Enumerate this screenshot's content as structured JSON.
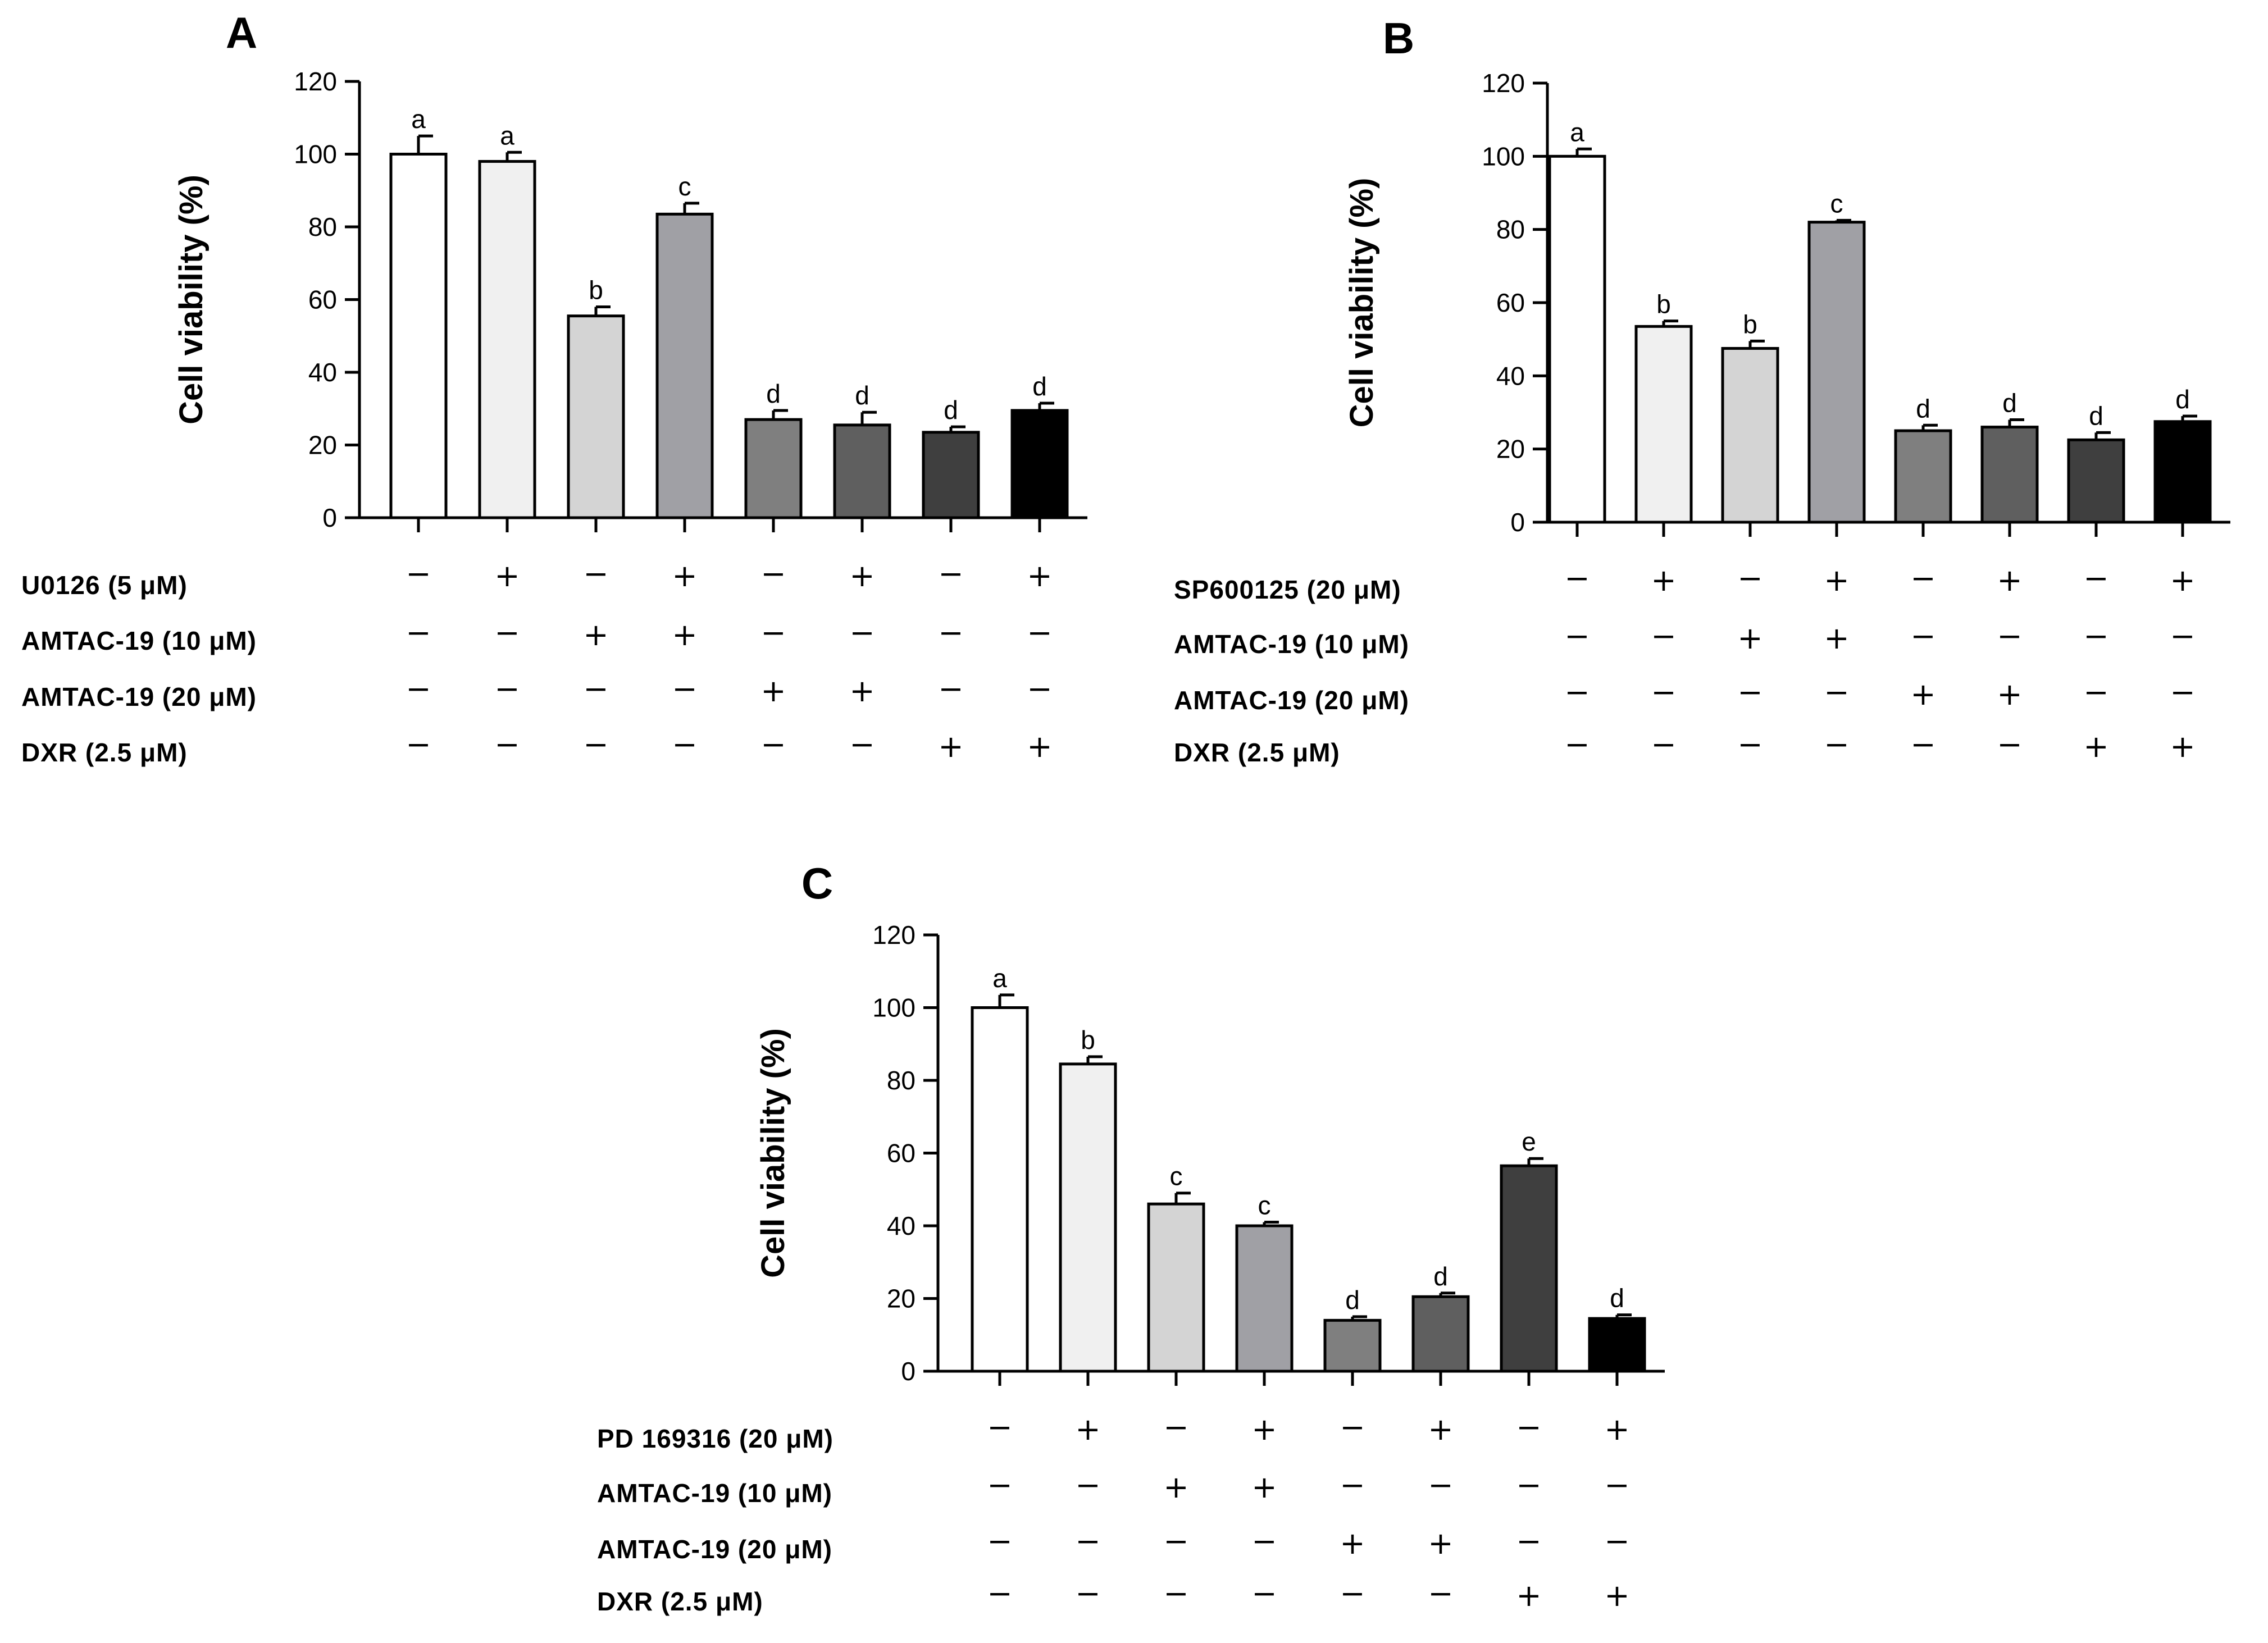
{
  "colors": [
    "#ffffff",
    "#f0f0f0",
    "#d4d4d4",
    "#a0a0a5",
    "#7f7f7f",
    "#5f5f5f",
    "#3f3f3f",
    "#000000"
  ],
  "chart_data": [
    {
      "type": "bar",
      "panel": "A",
      "ylabel": "Cell viability (%)",
      "ylim": [
        0,
        120
      ],
      "yticks": [
        "0",
        "20",
        "40",
        "60",
        "80",
        "100",
        "120"
      ],
      "values": [
        100,
        98,
        55.5,
        83.5,
        27,
        25.5,
        23.5,
        29.5
      ],
      "errors": [
        5,
        2.5,
        2.5,
        3,
        2.5,
        3.5,
        1.5,
        2
      ],
      "letters": [
        "a",
        "a",
        "b",
        "c",
        "d",
        "d",
        "d",
        "d"
      ],
      "treatments": [
        {
          "label": "U0126 (5 μM)",
          "signs": [
            "−",
            "+",
            "−",
            "+",
            "−",
            "+",
            "−",
            "+"
          ]
        },
        {
          "label": "AMTAC-19 (10 μM)",
          "signs": [
            "−",
            "−",
            "+",
            "+",
            "−",
            "−",
            "−",
            "−"
          ]
        },
        {
          "label": "AMTAC-19 (20 μM)",
          "signs": [
            "−",
            "−",
            "−",
            "−",
            "+",
            "+",
            "−",
            "−"
          ]
        },
        {
          "label": "DXR (2.5 μM)",
          "signs": [
            "−",
            "−",
            "−",
            "−",
            "−",
            "−",
            "+",
            "+"
          ]
        }
      ]
    },
    {
      "type": "bar",
      "panel": "B",
      "ylabel": "Cell viability (%)",
      "ylim": [
        0,
        120
      ],
      "yticks": [
        "0",
        "20",
        "40",
        "60",
        "80",
        "100",
        "120"
      ],
      "values": [
        100,
        53.5,
        47.5,
        82,
        25,
        26,
        22.5,
        27.5
      ],
      "errors": [
        2,
        1.5,
        2,
        0.5,
        1.5,
        2,
        2,
        1.5
      ],
      "letters": [
        "a",
        "b",
        "b",
        "c",
        "d",
        "d",
        "d",
        "d"
      ],
      "treatments": [
        {
          "label": "SP600125 (20 μM)",
          "signs": [
            "−",
            "+",
            "−",
            "+",
            "−",
            "+",
            "−",
            "+"
          ]
        },
        {
          "label": "AMTAC-19 (10 μM)",
          "signs": [
            "−",
            "−",
            "+",
            "+",
            "−",
            "−",
            "−",
            "−"
          ]
        },
        {
          "label": "AMTAC-19 (20 μM)",
          "signs": [
            "−",
            "−",
            "−",
            "−",
            "+",
            "+",
            "−",
            "−"
          ]
        },
        {
          "label": "DXR (2.5 μM)",
          "signs": [
            "−",
            "−",
            "−",
            "−",
            "−",
            "−",
            "+",
            "+"
          ]
        }
      ]
    },
    {
      "type": "bar",
      "panel": "C",
      "ylabel": "Cell viability (%)",
      "ylim": [
        0,
        120
      ],
      "yticks": [
        "0",
        "20",
        "40",
        "60",
        "80",
        "100",
        "120"
      ],
      "values": [
        100,
        84.5,
        46,
        40,
        14,
        20.5,
        56.5,
        14.5
      ],
      "errors": [
        3.5,
        2,
        3,
        1,
        1,
        1,
        2,
        1
      ],
      "letters": [
        "a",
        "b",
        "c",
        "c",
        "d",
        "d",
        "e",
        "d"
      ],
      "treatments": [
        {
          "label": "PD 169316 (20 μM)",
          "signs": [
            "−",
            "+",
            "−",
            "+",
            "−",
            "+",
            "−",
            "+"
          ]
        },
        {
          "label": "AMTAC-19 (10 μM)",
          "signs": [
            "−",
            "−",
            "+",
            "+",
            "−",
            "−",
            "−",
            "−"
          ]
        },
        {
          "label": "AMTAC-19 (20 μM)",
          "signs": [
            "−",
            "−",
            "−",
            "−",
            "+",
            "+",
            "−",
            "−"
          ]
        },
        {
          "label": "DXR (2.5 μM)",
          "signs": [
            "−",
            "−",
            "−",
            "−",
            "−",
            "−",
            "+",
            "+"
          ]
        }
      ]
    }
  ]
}
